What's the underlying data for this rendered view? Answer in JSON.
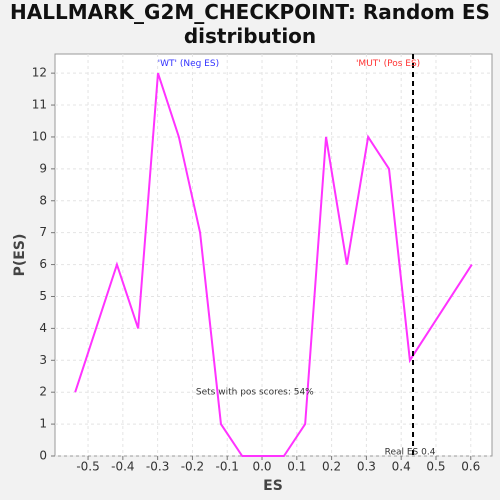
{
  "chart_data": {
    "type": "line",
    "title": "HALLMARK_G2M_CHECKPOINT: Random ES distribution",
    "x_label": "ES",
    "y_label": "P(ES)",
    "x": [
      -0.537,
      -0.417,
      -0.356,
      -0.299,
      -0.239,
      -0.178,
      -0.118,
      -0.057,
      0.003,
      0.063,
      0.124,
      0.184,
      0.244,
      0.305,
      0.365,
      0.425,
      0.603
    ],
    "series": [
      {
        "name": "P(ES)",
        "color": "#ff33ff",
        "values": [
          2,
          6,
          4,
          12,
          10,
          7,
          1,
          0,
          0,
          0,
          1,
          10,
          6,
          10,
          9,
          3,
          6
        ]
      }
    ],
    "xlim": [
      -0.595,
      0.661
    ],
    "ylim": [
      0,
      12.6
    ],
    "xticks": [
      {
        "value": -0.5,
        "label": "-0.5"
      },
      {
        "value": -0.4,
        "label": "-0.4"
      },
      {
        "value": -0.3,
        "label": "-0.3"
      },
      {
        "value": -0.2,
        "label": "-0.2"
      },
      {
        "value": -0.1,
        "label": "-0.1"
      },
      {
        "value": 0,
        "label": "0.0"
      },
      0.1,
      0.2,
      0.3,
      0.4,
      0.5,
      0.6
    ],
    "yticks": [
      0,
      1,
      2,
      3,
      4,
      5,
      6,
      7,
      8,
      9,
      10,
      11,
      12
    ],
    "grid": true,
    "real_es": {
      "value": 0.434,
      "label": "Real ES 0.4"
    },
    "annotations": [
      {
        "text": "'WT' (Neg ES)",
        "color": "#3333ff",
        "x": -0.3,
        "y": 12.3
      },
      {
        "text": "'MUT' (Pos ES)",
        "color": "#ff3333",
        "x": 0.27,
        "y": 12.3
      },
      {
        "text": "Sets with pos scores: 54%",
        "color": "#333333",
        "x": -0.19,
        "y": 2
      }
    ]
  }
}
